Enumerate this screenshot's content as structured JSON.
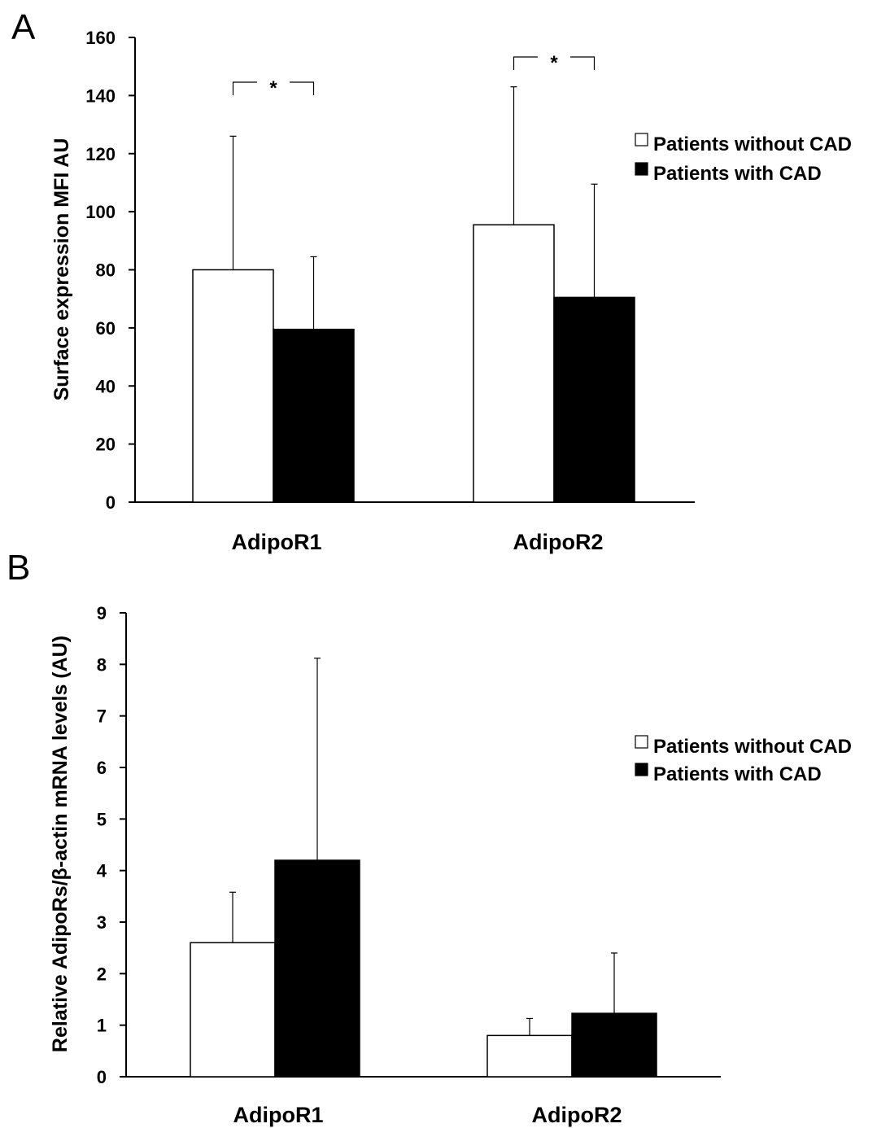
{
  "chart_data": [
    {
      "panel_label": "A",
      "type": "bar",
      "ylabel": "Surface expression MFI AU",
      "ylim": [
        0,
        160
      ],
      "yticks": [
        0,
        20,
        40,
        60,
        80,
        100,
        120,
        140,
        160
      ],
      "categories": [
        "AdipoR1",
        "AdipoR2"
      ],
      "series": [
        {
          "name": "Patients without CAD",
          "color": "#ffffff",
          "values": [
            80,
            95.5
          ],
          "error": [
            46,
            47.5
          ]
        },
        {
          "name": "Patients with CAD",
          "color": "#000000",
          "values": [
            59.5,
            70.5
          ],
          "error": [
            25,
            39
          ]
        }
      ],
      "significance": [
        {
          "category": 0,
          "label": "*"
        },
        {
          "category": 1,
          "label": "*"
        }
      ],
      "legend_position": "right"
    },
    {
      "panel_label": "B",
      "type": "bar",
      "ylabel": "Relative AdipoRs/β-actin mRNA levels (AU)",
      "ylim": [
        0,
        9
      ],
      "yticks": [
        0,
        1,
        2,
        3,
        4,
        5,
        6,
        7,
        8,
        9
      ],
      "categories": [
        "AdipoR1",
        "AdipoR2"
      ],
      "series": [
        {
          "name": "Patients without CAD",
          "color": "#ffffff",
          "values": [
            2.6,
            0.8
          ],
          "error": [
            0.98,
            0.33
          ]
        },
        {
          "name": "Patients with CAD",
          "color": "#000000",
          "values": [
            4.2,
            1.23
          ],
          "error": [
            3.92,
            1.17
          ]
        }
      ],
      "significance": [],
      "legend_position": "right"
    }
  ]
}
